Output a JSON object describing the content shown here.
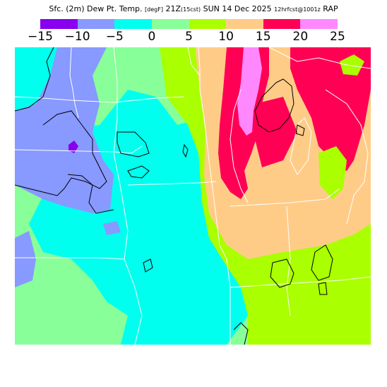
{
  "title": {
    "main": "Sfc. (2m) Dew Pt. Temp. ",
    "units": "[degF]",
    "time_main": " 21Z",
    "time_local": "(15cst)",
    "date": " SUN 14 Dec 2025 ",
    "run": "12hrfcst@1001z",
    "model": " RAP"
  },
  "legend": {
    "colors": [
      "#8800ee",
      "#8899ff",
      "#00ffee",
      "#88ff99",
      "#aaff00",
      "#ffcc88",
      "#ff0055",
      "#ff88ff"
    ],
    "labels": [
      "−15",
      "−10",
      "−5",
      "0",
      "5",
      "10",
      "15",
      "20",
      "25"
    ]
  },
  "map": {
    "palette": {
      "very_low": "#8800ee",
      "low": "#8899ff",
      "cool": "#00ffee",
      "mild": "#88ff99",
      "warm": "#aaff00",
      "warmer": "#ffcc88",
      "hot": "#ff0055",
      "hottest": "#ff88ff"
    },
    "contour_color": "#000000",
    "border_color": "#ffffff"
  }
}
